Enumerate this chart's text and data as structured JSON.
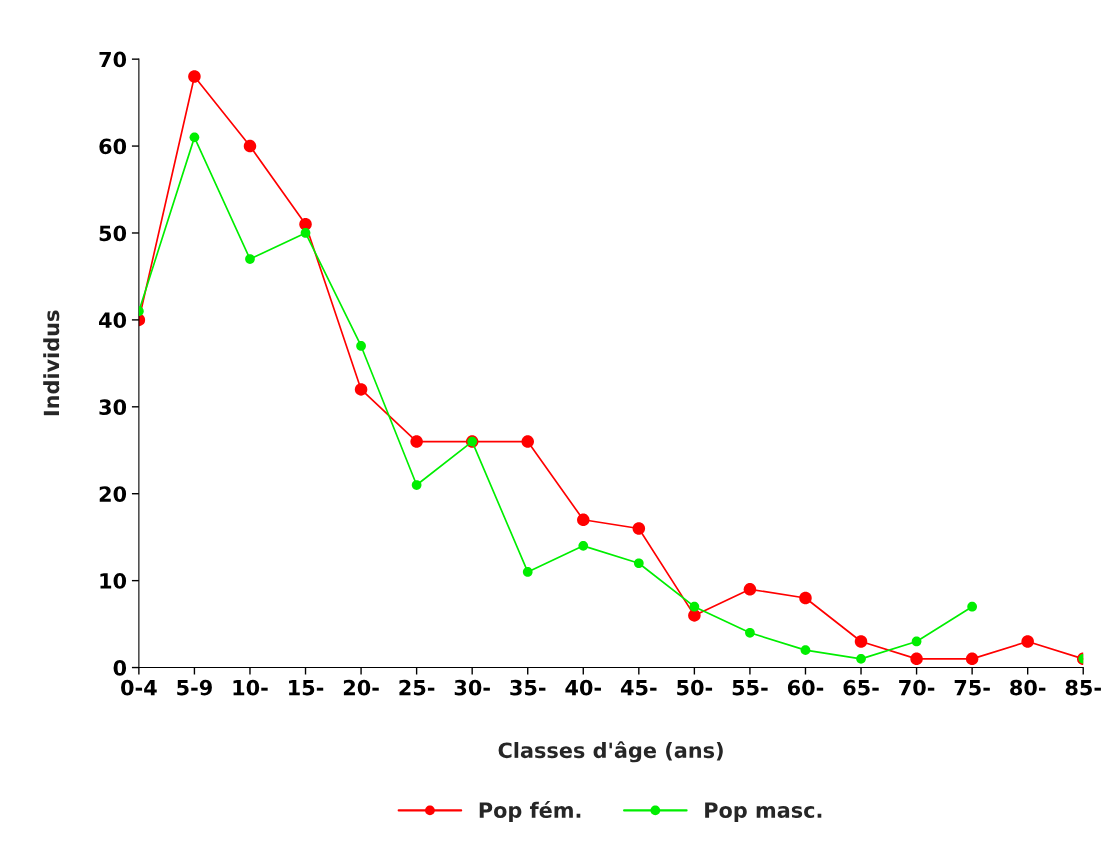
{
  "chart_data": {
    "type": "line",
    "xlabel": "Classes d'âge (ans)",
    "ylabel": "Individus",
    "categories": [
      "0-4",
      "5-9",
      "10-",
      "15-",
      "20-",
      "25-",
      "30-",
      "35-",
      "40-",
      "45-",
      "50-",
      "55-",
      "60-",
      "65-",
      "70-",
      "75-",
      "80-",
      "85-"
    ],
    "series": [
      {
        "name": "Pop fém.",
        "color": "#ff0000",
        "values": [
          40,
          68,
          60,
          51,
          32,
          26,
          26,
          26,
          17,
          16,
          6,
          9,
          8,
          3,
          1,
          1,
          3,
          1
        ]
      },
      {
        "name": "Pop masc.",
        "color": "#00ee00",
        "values": [
          41,
          61,
          47,
          50,
          37,
          21,
          26,
          11,
          14,
          12,
          7,
          4,
          2,
          1,
          3,
          7,
          null,
          1
        ]
      }
    ],
    "ylim": [
      0,
      70
    ],
    "yticks": [
      0,
      10,
      20,
      30,
      40,
      50,
      60,
      70
    ],
    "grid": false,
    "legend": "bottom",
    "marker": "circle",
    "line_style": "solid"
  }
}
